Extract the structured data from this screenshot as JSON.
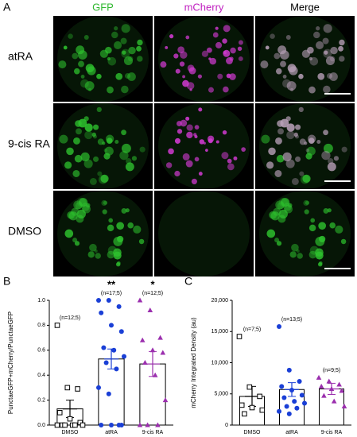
{
  "panel_a": {
    "label": "A",
    "columns": [
      "GFP",
      "mCherry",
      "Merge"
    ],
    "column_colors": [
      "#2fb82f",
      "#c020c0",
      "#000000"
    ],
    "rows": [
      "atRA",
      "9-cis RA",
      "DMSO"
    ]
  },
  "chart_data": [
    {
      "type": "bar",
      "panel_label": "B",
      "y_label": "PunctaeGFP+mCherry/PunctaeGFP",
      "categories": [
        "DMSO",
        "atRA",
        "9-cis RA"
      ],
      "values": [
        0.13,
        0.53,
        0.49
      ],
      "errors": [
        0.07,
        0.08,
        0.1
      ],
      "points": [
        [
          0.8,
          0.3,
          0.29,
          0.1,
          0.05,
          0.02,
          0,
          0,
          0,
          0,
          0,
          0
        ],
        [
          1.0,
          1.0,
          0.95,
          0.9,
          0.8,
          0.75,
          0.62,
          0.6,
          0.55,
          0.5,
          0.45,
          0.3,
          0.25,
          0,
          0,
          0,
          0
        ],
        [
          1.0,
          0.92,
          0.7,
          0.68,
          0.6,
          0.58,
          0.5,
          0.4,
          0.2,
          0,
          0,
          0
        ]
      ],
      "colors": [
        "#000000",
        "#1a3fd6",
        "#9b2fae"
      ],
      "markers": [
        "square",
        "circle",
        "triangle"
      ],
      "annotations": [
        "(n=12;5)",
        "(n=17;5)",
        "(n=12;5)"
      ],
      "significance": [
        null,
        "**",
        "*"
      ],
      "ylim": [
        0,
        1.0
      ],
      "yticks": [
        {
          "value": 0,
          "label": "0.0"
        },
        0.2,
        0.4,
        0.6,
        0.8,
        {
          "value": 1.0,
          "label": "1.0"
        }
      ]
    },
    {
      "type": "bar",
      "panel_label": "C",
      "y_label": "mCherry Integrated Density (au)",
      "categories": [
        "DMSO",
        "atRA",
        "9-cis RA"
      ],
      "values": [
        4600,
        5700,
        5800
      ],
      "errors": [
        1600,
        1100,
        900
      ],
      "points": [
        [
          14200,
          6100,
          4600,
          3200,
          2800,
          2400,
          1800
        ],
        [
          15800,
          8800,
          7000,
          6200,
          5600,
          4800,
          4400,
          3800,
          3500,
          3000,
          2700,
          2200,
          1800
        ],
        [
          7600,
          7000,
          6500,
          6200,
          5800,
          5500,
          4700,
          3800,
          3000
        ]
      ],
      "colors": [
        "#000000",
        "#1a3fd6",
        "#9b2fae"
      ],
      "markers": [
        "square",
        "circle",
        "triangle"
      ],
      "annotations": [
        "(n=7;5)",
        "(n=13;5)",
        "(n=9;5)"
      ],
      "ylim": [
        0,
        20000
      ],
      "yticks": [
        0,
        {
          "value": 5000,
          "label": "5,000"
        },
        {
          "value": 10000,
          "label": "10,000"
        },
        {
          "value": 15000,
          "label": "15,000"
        },
        {
          "value": 20000,
          "label": "20,000"
        }
      ]
    }
  ]
}
